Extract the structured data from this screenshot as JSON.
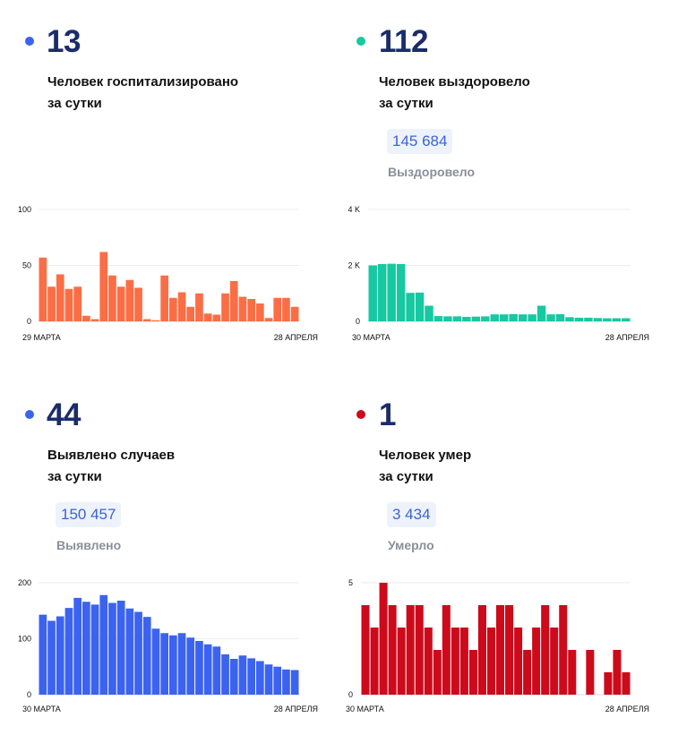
{
  "panels": [
    {
      "id": "hospitalized",
      "color": "#fb6e45",
      "dot_color": "#3b63f0",
      "number": "13",
      "caption_line1": "Человек госпитализировано",
      "caption_line2": "за сутки",
      "total": "",
      "total_label": ""
    },
    {
      "id": "recovered",
      "color": "#17c8a2",
      "dot_color": "#17c8a2",
      "number": "112",
      "caption_line1": "Человек выздоровело",
      "caption_line2": "за сутки",
      "total": "145 684",
      "total_label": "Выздоровело"
    },
    {
      "id": "cases",
      "color": "#3b63f0",
      "dot_color": "#3b63f0",
      "number": "44",
      "caption_line1": "Выявлено случаев",
      "caption_line2": "за сутки",
      "total": "150 457",
      "total_label": "Выявлено"
    },
    {
      "id": "deaths",
      "color": "#cc0a1b",
      "dot_color": "#cc0a1b",
      "number": "1",
      "caption_line1": "Человек умер",
      "caption_line2": "за сутки",
      "total": "3 434",
      "total_label": "Умерло"
    }
  ],
  "chart_data": [
    {
      "type": "bar",
      "title": "",
      "x_start_label": "29 МАРТА",
      "x_end_label": "28 АПРЕЛЯ",
      "y_ticks": [
        "0",
        "50",
        "100"
      ],
      "ylim": [
        0,
        100
      ],
      "grid": true,
      "values": [
        57,
        31,
        42,
        29,
        31,
        5,
        2,
        62,
        41,
        31,
        37,
        30,
        2,
        1,
        41,
        21,
        26,
        13,
        25,
        7,
        6,
        25,
        36,
        22,
        20,
        16,
        3,
        21,
        21,
        13
      ]
    },
    {
      "type": "bar",
      "title": "",
      "x_start_label": "30 МАРТА",
      "x_end_label": "28 АПРЕЛЯ",
      "y_ticks": [
        "0",
        "2 K",
        "4 K"
      ],
      "ylim": [
        0,
        4000
      ],
      "grid": true,
      "values": [
        2000,
        2050,
        2060,
        2050,
        1020,
        1030,
        560,
        190,
        180,
        180,
        160,
        170,
        180,
        250,
        250,
        260,
        250,
        250,
        560,
        250,
        260,
        150,
        130,
        130,
        120,
        110,
        112,
        112
      ]
    },
    {
      "type": "bar",
      "title": "",
      "x_start_label": "30 МАРТА",
      "x_end_label": "28 АПРЕЛЯ",
      "y_ticks": [
        "0",
        "100",
        "200"
      ],
      "ylim": [
        0,
        200
      ],
      "grid": true,
      "values": [
        143,
        132,
        140,
        155,
        173,
        166,
        161,
        178,
        164,
        168,
        154,
        148,
        139,
        118,
        110,
        106,
        110,
        102,
        96,
        90,
        86,
        72,
        64,
        70,
        65,
        60,
        54,
        50,
        45,
        44
      ]
    },
    {
      "type": "bar",
      "title": "",
      "x_start_label": "30 МАРТА",
      "x_end_label": "28 АПРЕЛЯ",
      "y_ticks": [
        "0",
        "5"
      ],
      "ylim": [
        0,
        5
      ],
      "grid": true,
      "values": [
        4,
        3,
        5,
        4,
        3,
        4,
        4,
        3,
        2,
        4,
        3,
        3,
        2,
        4,
        3,
        4,
        4,
        3,
        2,
        3,
        4,
        3,
        4,
        2,
        0,
        2,
        0,
        1,
        2,
        1
      ]
    }
  ]
}
